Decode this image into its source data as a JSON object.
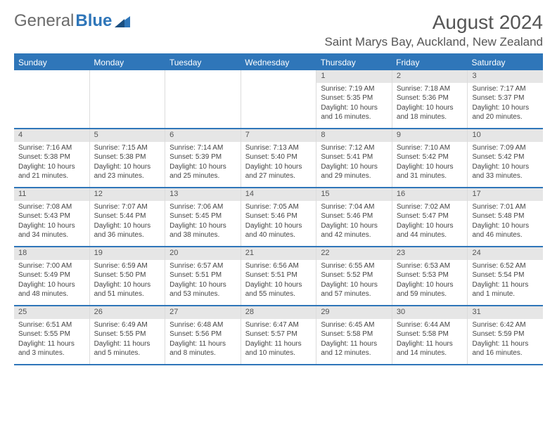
{
  "brand": {
    "part1": "General",
    "part2": "Blue",
    "accent_color": "#2f76b9",
    "gray_color": "#6b6b6b"
  },
  "title": "August 2024",
  "location": "Saint Marys Bay, Auckland, New Zealand",
  "colors": {
    "header_bg": "#2f76b9",
    "header_text": "#ffffff",
    "daynum_bg": "#e6e6e6",
    "border": "#2f76b9",
    "cell_border": "#dcdcdc",
    "text": "#444444"
  },
  "fonts": {
    "title_size": 28,
    "location_size": 17,
    "dow_size": 12,
    "daynum_size": 11,
    "body_size": 10
  },
  "days_of_week": [
    "Sunday",
    "Monday",
    "Tuesday",
    "Wednesday",
    "Thursday",
    "Friday",
    "Saturday"
  ],
  "weeks": [
    [
      {
        "empty": true
      },
      {
        "empty": true
      },
      {
        "empty": true
      },
      {
        "empty": true
      },
      {
        "num": "1",
        "sunrise": "Sunrise: 7:19 AM",
        "sunset": "Sunset: 5:35 PM",
        "daylight1": "Daylight: 10 hours",
        "daylight2": "and 16 minutes."
      },
      {
        "num": "2",
        "sunrise": "Sunrise: 7:18 AM",
        "sunset": "Sunset: 5:36 PM",
        "daylight1": "Daylight: 10 hours",
        "daylight2": "and 18 minutes."
      },
      {
        "num": "3",
        "sunrise": "Sunrise: 7:17 AM",
        "sunset": "Sunset: 5:37 PM",
        "daylight1": "Daylight: 10 hours",
        "daylight2": "and 20 minutes."
      }
    ],
    [
      {
        "num": "4",
        "sunrise": "Sunrise: 7:16 AM",
        "sunset": "Sunset: 5:38 PM",
        "daylight1": "Daylight: 10 hours",
        "daylight2": "and 21 minutes."
      },
      {
        "num": "5",
        "sunrise": "Sunrise: 7:15 AM",
        "sunset": "Sunset: 5:38 PM",
        "daylight1": "Daylight: 10 hours",
        "daylight2": "and 23 minutes."
      },
      {
        "num": "6",
        "sunrise": "Sunrise: 7:14 AM",
        "sunset": "Sunset: 5:39 PM",
        "daylight1": "Daylight: 10 hours",
        "daylight2": "and 25 minutes."
      },
      {
        "num": "7",
        "sunrise": "Sunrise: 7:13 AM",
        "sunset": "Sunset: 5:40 PM",
        "daylight1": "Daylight: 10 hours",
        "daylight2": "and 27 minutes."
      },
      {
        "num": "8",
        "sunrise": "Sunrise: 7:12 AM",
        "sunset": "Sunset: 5:41 PM",
        "daylight1": "Daylight: 10 hours",
        "daylight2": "and 29 minutes."
      },
      {
        "num": "9",
        "sunrise": "Sunrise: 7:10 AM",
        "sunset": "Sunset: 5:42 PM",
        "daylight1": "Daylight: 10 hours",
        "daylight2": "and 31 minutes."
      },
      {
        "num": "10",
        "sunrise": "Sunrise: 7:09 AM",
        "sunset": "Sunset: 5:42 PM",
        "daylight1": "Daylight: 10 hours",
        "daylight2": "and 33 minutes."
      }
    ],
    [
      {
        "num": "11",
        "sunrise": "Sunrise: 7:08 AM",
        "sunset": "Sunset: 5:43 PM",
        "daylight1": "Daylight: 10 hours",
        "daylight2": "and 34 minutes."
      },
      {
        "num": "12",
        "sunrise": "Sunrise: 7:07 AM",
        "sunset": "Sunset: 5:44 PM",
        "daylight1": "Daylight: 10 hours",
        "daylight2": "and 36 minutes."
      },
      {
        "num": "13",
        "sunrise": "Sunrise: 7:06 AM",
        "sunset": "Sunset: 5:45 PM",
        "daylight1": "Daylight: 10 hours",
        "daylight2": "and 38 minutes."
      },
      {
        "num": "14",
        "sunrise": "Sunrise: 7:05 AM",
        "sunset": "Sunset: 5:46 PM",
        "daylight1": "Daylight: 10 hours",
        "daylight2": "and 40 minutes."
      },
      {
        "num": "15",
        "sunrise": "Sunrise: 7:04 AM",
        "sunset": "Sunset: 5:46 PM",
        "daylight1": "Daylight: 10 hours",
        "daylight2": "and 42 minutes."
      },
      {
        "num": "16",
        "sunrise": "Sunrise: 7:02 AM",
        "sunset": "Sunset: 5:47 PM",
        "daylight1": "Daylight: 10 hours",
        "daylight2": "and 44 minutes."
      },
      {
        "num": "17",
        "sunrise": "Sunrise: 7:01 AM",
        "sunset": "Sunset: 5:48 PM",
        "daylight1": "Daylight: 10 hours",
        "daylight2": "and 46 minutes."
      }
    ],
    [
      {
        "num": "18",
        "sunrise": "Sunrise: 7:00 AM",
        "sunset": "Sunset: 5:49 PM",
        "daylight1": "Daylight: 10 hours",
        "daylight2": "and 48 minutes."
      },
      {
        "num": "19",
        "sunrise": "Sunrise: 6:59 AM",
        "sunset": "Sunset: 5:50 PM",
        "daylight1": "Daylight: 10 hours",
        "daylight2": "and 51 minutes."
      },
      {
        "num": "20",
        "sunrise": "Sunrise: 6:57 AM",
        "sunset": "Sunset: 5:51 PM",
        "daylight1": "Daylight: 10 hours",
        "daylight2": "and 53 minutes."
      },
      {
        "num": "21",
        "sunrise": "Sunrise: 6:56 AM",
        "sunset": "Sunset: 5:51 PM",
        "daylight1": "Daylight: 10 hours",
        "daylight2": "and 55 minutes."
      },
      {
        "num": "22",
        "sunrise": "Sunrise: 6:55 AM",
        "sunset": "Sunset: 5:52 PM",
        "daylight1": "Daylight: 10 hours",
        "daylight2": "and 57 minutes."
      },
      {
        "num": "23",
        "sunrise": "Sunrise: 6:53 AM",
        "sunset": "Sunset: 5:53 PM",
        "daylight1": "Daylight: 10 hours",
        "daylight2": "and 59 minutes."
      },
      {
        "num": "24",
        "sunrise": "Sunrise: 6:52 AM",
        "sunset": "Sunset: 5:54 PM",
        "daylight1": "Daylight: 11 hours",
        "daylight2": "and 1 minute."
      }
    ],
    [
      {
        "num": "25",
        "sunrise": "Sunrise: 6:51 AM",
        "sunset": "Sunset: 5:55 PM",
        "daylight1": "Daylight: 11 hours",
        "daylight2": "and 3 minutes."
      },
      {
        "num": "26",
        "sunrise": "Sunrise: 6:49 AM",
        "sunset": "Sunset: 5:55 PM",
        "daylight1": "Daylight: 11 hours",
        "daylight2": "and 5 minutes."
      },
      {
        "num": "27",
        "sunrise": "Sunrise: 6:48 AM",
        "sunset": "Sunset: 5:56 PM",
        "daylight1": "Daylight: 11 hours",
        "daylight2": "and 8 minutes."
      },
      {
        "num": "28",
        "sunrise": "Sunrise: 6:47 AM",
        "sunset": "Sunset: 5:57 PM",
        "daylight1": "Daylight: 11 hours",
        "daylight2": "and 10 minutes."
      },
      {
        "num": "29",
        "sunrise": "Sunrise: 6:45 AM",
        "sunset": "Sunset: 5:58 PM",
        "daylight1": "Daylight: 11 hours",
        "daylight2": "and 12 minutes."
      },
      {
        "num": "30",
        "sunrise": "Sunrise: 6:44 AM",
        "sunset": "Sunset: 5:58 PM",
        "daylight1": "Daylight: 11 hours",
        "daylight2": "and 14 minutes."
      },
      {
        "num": "31",
        "sunrise": "Sunrise: 6:42 AM",
        "sunset": "Sunset: 5:59 PM",
        "daylight1": "Daylight: 11 hours",
        "daylight2": "and 16 minutes."
      }
    ]
  ]
}
